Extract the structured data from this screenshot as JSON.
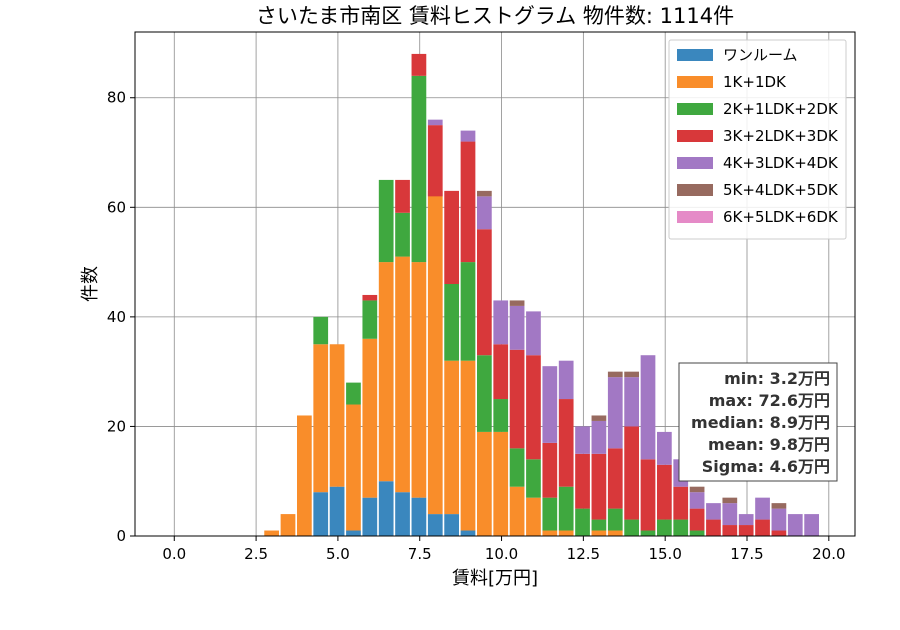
{
  "chart_data": {
    "type": "bar",
    "stacked": true,
    "title": "さいたま市南区 賃料ヒストグラム 物件数: 1114件",
    "xlabel": "賃料[万円]",
    "ylabel": "件数",
    "xlim": [
      -1.2,
      20.8
    ],
    "ylim": [
      0,
      92
    ],
    "xticks": [
      0.0,
      2.5,
      5.0,
      7.5,
      10.0,
      12.5,
      15.0,
      17.5,
      20.0
    ],
    "xtick_labels": [
      "0.0",
      "2.5",
      "5.0",
      "7.5",
      "10.0",
      "12.5",
      "15.0",
      "17.5",
      "20.0"
    ],
    "yticks": [
      0,
      20,
      40,
      60,
      80
    ],
    "ytick_labels": [
      "0",
      "20",
      "40",
      "60",
      "80"
    ],
    "grid": true,
    "legend_position": "top-right",
    "bin_width": 0.5,
    "bin_starts": [
      2.75,
      3.25,
      3.75,
      4.25,
      4.75,
      5.25,
      5.75,
      6.25,
      6.75,
      7.25,
      7.75,
      8.25,
      8.75,
      9.25,
      9.75,
      10.25,
      10.75,
      11.25,
      11.75,
      12.25,
      12.75,
      13.25,
      13.75,
      14.25,
      14.75,
      15.25,
      15.75,
      16.25,
      16.75,
      17.25,
      17.75,
      18.25,
      18.75,
      19.25
    ],
    "series": [
      {
        "name": "ワンルーム",
        "color": "#3a87be",
        "values": [
          0,
          0,
          0,
          8,
          9,
          1,
          7,
          10,
          8,
          7,
          4,
          4,
          1,
          0,
          0,
          0,
          0,
          0,
          0,
          0,
          0,
          0,
          0,
          0,
          0,
          0,
          0,
          0,
          0,
          0,
          0,
          0,
          0,
          0
        ]
      },
      {
        "name": "1K+1DK",
        "color": "#f98d2a",
        "values": [
          1,
          4,
          22,
          27,
          26,
          23,
          29,
          40,
          43,
          43,
          59,
          28,
          31,
          19,
          19,
          9,
          7,
          1,
          1,
          0,
          1,
          1,
          0,
          0,
          0,
          0,
          0,
          0,
          0,
          0,
          0,
          0,
          0,
          0
        ]
      },
      {
        "name": "2K+1LDK+2DK",
        "color": "#3fa83f",
        "values": [
          0,
          0,
          0,
          5,
          0,
          4,
          7,
          15,
          8,
          34,
          -1,
          14,
          18,
          14,
          6,
          7,
          7,
          6,
          8,
          5,
          2,
          4,
          3,
          1,
          3,
          3,
          1,
          0,
          0,
          0,
          0,
          0,
          0,
          0
        ]
      },
      {
        "name": "3K+2LDK+3DK",
        "color": "#d8383a",
        "values": [
          0,
          0,
          0,
          0,
          0,
          0,
          1,
          0,
          6,
          4,
          13,
          17,
          22,
          23,
          10,
          18,
          19,
          10,
          16,
          10,
          12,
          11,
          17,
          13,
          10,
          6,
          4,
          3,
          2,
          2,
          3,
          1,
          0,
          0
        ]
      },
      {
        "name": "4K+3LDK+4DK",
        "color": "#a278c4",
        "values": [
          0,
          0,
          0,
          0,
          0,
          0,
          0,
          0,
          0,
          0,
          1,
          0,
          2,
          6,
          8,
          8,
          8,
          14,
          7,
          5,
          6,
          13,
          9,
          19,
          6,
          5,
          3,
          3,
          4,
          2,
          4,
          4,
          4,
          4
        ]
      },
      {
        "name": "5K+4LDK+5DK",
        "color": "#976a5f",
        "values": [
          0,
          0,
          0,
          0,
          0,
          0,
          0,
          0,
          0,
          0,
          0,
          0,
          0,
          1,
          0,
          1,
          0,
          0,
          0,
          0,
          1,
          1,
          1,
          0,
          0,
          0,
          1,
          0,
          1,
          0,
          0,
          1,
          0,
          0
        ]
      },
      {
        "name": "6K+5LDK+6DK",
        "color": "#e58ac7",
        "values": [
          0,
          0,
          0,
          0,
          0,
          0,
          0,
          0,
          0,
          0,
          0,
          0,
          0,
          0,
          0,
          0,
          0,
          0,
          0,
          0,
          0,
          0,
          0,
          0,
          0,
          0,
          0,
          0,
          0,
          0,
          0,
          0,
          0,
          0
        ]
      }
    ],
    "stats": {
      "min": "min: 3.2万円",
      "max": "max: 72.6万円",
      "median": "median: 8.9万円",
      "mean": "mean: 9.8万円",
      "sigma": "Sigma: 4.6万円"
    }
  }
}
